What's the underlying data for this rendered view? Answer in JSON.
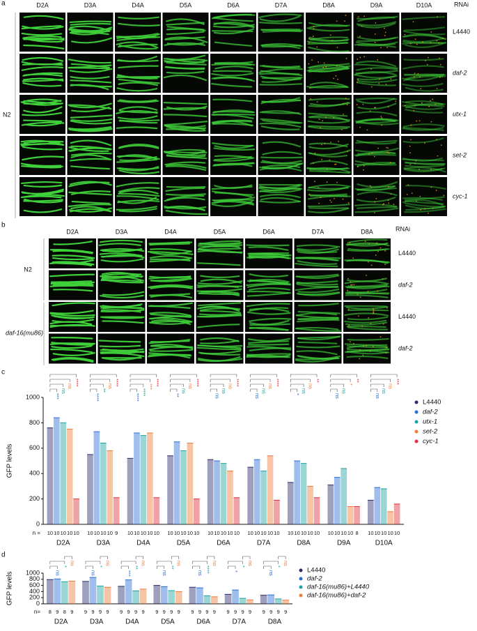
{
  "panel_a": {
    "label": "a",
    "columns": [
      "D2A",
      "D3A",
      "D4A",
      "D5A",
      "D6A",
      "D7A",
      "D8A",
      "D9A",
      "D10A"
    ],
    "rnai_label": "RNAi",
    "rows": [
      "L4440",
      "daf-2",
      "utx-1",
      "set-2",
      "cyc-1"
    ],
    "strain": "N2"
  },
  "panel_b": {
    "label": "b",
    "columns": [
      "D2A",
      "D3A",
      "D4A",
      "D5A",
      "D6A",
      "D7A",
      "D8A"
    ],
    "rnai_label": "RNAi",
    "rows": [
      "L4440",
      "daf-2",
      "L4440",
      "daf-2"
    ],
    "strains": [
      "N2",
      "daf-16(mu86)"
    ]
  },
  "chart_data": [
    {
      "type": "bar",
      "panel_label": "c",
      "y_label": "GFP levels",
      "categories": [
        "D2A",
        "D3A",
        "D4A",
        "D5A",
        "D6A",
        "D7A",
        "D8A",
        "D9A",
        "D10A"
      ],
      "n_label": "n =",
      "n": [
        [
          10,
          10,
          10,
          10,
          10
        ],
        [
          10,
          10,
          10,
          10,
          9
        ],
        [
          10,
          10,
          10,
          10,
          10
        ],
        [
          10,
          10,
          10,
          10,
          10
        ],
        [
          10,
          10,
          10,
          10,
          10
        ],
        [
          10,
          10,
          10,
          10,
          10
        ],
        [
          10,
          10,
          10,
          10,
          10
        ],
        [
          10,
          10,
          10,
          10,
          8
        ],
        [
          10,
          10,
          10,
          10,
          10
        ]
      ],
      "ylim": [
        0,
        1000
      ],
      "yticks": [
        0,
        200,
        400,
        600,
        800,
        1000
      ],
      "grid": false,
      "series": [
        {
          "name": "L4440",
          "color": "#2b2b6e",
          "values": [
            760,
            550,
            520,
            540,
            510,
            450,
            330,
            310,
            190
          ]
        },
        {
          "name": "daf-2",
          "color": "#2a6fd6",
          "values": [
            840,
            730,
            720,
            650,
            500,
            510,
            500,
            370,
            290
          ]
        },
        {
          "name": "utx-1",
          "color": "#1fa3a0",
          "values": [
            800,
            640,
            700,
            580,
            480,
            420,
            480,
            440,
            280
          ]
        },
        {
          "name": "set-2",
          "color": "#f07c3a",
          "values": [
            750,
            580,
            720,
            640,
            420,
            540,
            300,
            140,
            100
          ]
        },
        {
          "name": "cyc-1",
          "color": "#e0303a",
          "values": [
            200,
            210,
            210,
            200,
            210,
            190,
            210,
            140,
            160
          ]
        }
      ],
      "significance": [
        [
          "***",
          "ns",
          "ns",
          "****"
        ],
        [
          "****",
          "**",
          "ns",
          "****"
        ],
        [
          "****",
          "****",
          "***",
          "****"
        ],
        [
          "**",
          "ns",
          "ns",
          "****"
        ],
        [
          "ns",
          "ns",
          "ns",
          "****"
        ],
        [
          "ns",
          "ns",
          "ns",
          "****"
        ],
        [
          "*",
          "ns",
          "ns",
          "**"
        ],
        [
          "ns",
          "ns",
          "*",
          "**"
        ],
        [
          "ns",
          "ns",
          "ns",
          "***"
        ]
      ]
    },
    {
      "type": "bar",
      "panel_label": "d",
      "y_label": "GFP levels",
      "categories": [
        "D2A",
        "D3A",
        "D4A",
        "D5A",
        "D6A",
        "D7A",
        "D8A"
      ],
      "n_label": "n=",
      "n": [
        [
          8,
          9,
          8,
          9
        ],
        [
          9,
          9,
          9,
          9
        ],
        [
          9,
          9,
          9,
          9
        ],
        [
          9,
          9,
          9,
          9
        ],
        [
          9,
          9,
          9,
          9
        ],
        [
          9,
          9,
          9,
          9
        ],
        [
          9,
          9,
          9,
          9
        ]
      ],
      "ylim": [
        0,
        1000
      ],
      "yticks": [
        0,
        200,
        400,
        600,
        800,
        1000
      ],
      "grid": false,
      "series": [
        {
          "name": "L4440",
          "color": "#2b2b6e",
          "values": [
            790,
            730,
            570,
            600,
            540,
            310,
            280
          ]
        },
        {
          "name": "daf-2",
          "color": "#2a6fd6",
          "values": [
            810,
            860,
            780,
            560,
            520,
            450,
            290
          ]
        },
        {
          "name": "daf-16(mu86)+L4440",
          "color": "#1fa3a0",
          "values": [
            720,
            580,
            420,
            430,
            260,
            180,
            160
          ]
        },
        {
          "name": "daf-16(mu86)+daf-2",
          "color": "#f07c3a",
          "values": [
            740,
            540,
            480,
            400,
            230,
            130,
            120
          ]
        }
      ],
      "significance": [
        [
          "ns",
          "*",
          "ns"
        ],
        [
          "ns",
          "*",
          "ns"
        ],
        [
          "***",
          "**",
          "ns"
        ],
        [
          "ns",
          "**",
          "ns"
        ],
        [
          "ns",
          "****",
          "ns"
        ],
        [
          "*",
          "*",
          "ns"
        ],
        [
          "ns",
          "*",
          "ns"
        ]
      ]
    }
  ]
}
